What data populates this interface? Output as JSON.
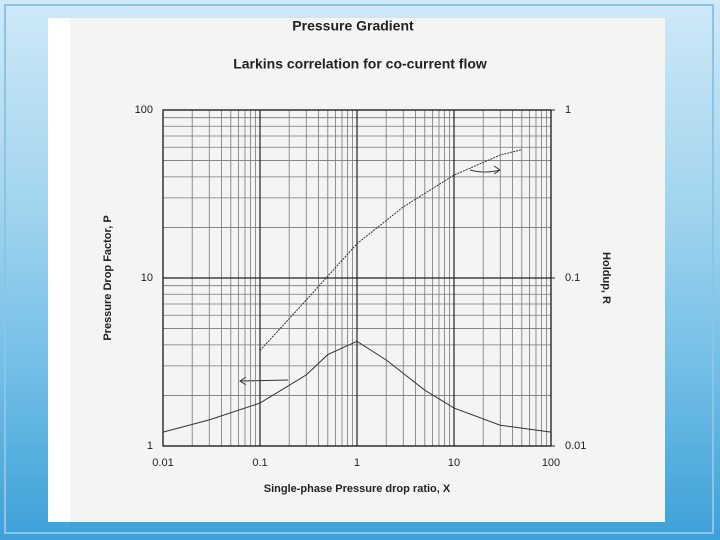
{
  "chart_data": {
    "type": "line",
    "title": "Pressure Gradient",
    "subtitle": "Larkins correlation for co-current flow",
    "x_label": "Single-phase Pressure drop ratio, X",
    "y_label": "Pressure Drop Factor, P",
    "y2_label": "Holdup, R",
    "log_x": true,
    "log_y": true,
    "log_y2": true,
    "grid": true,
    "xlim": [
      0.01,
      100
    ],
    "xticks": [
      0.01,
      0.1,
      1,
      10,
      100
    ],
    "ylim": [
      1,
      100
    ],
    "yticks": [
      1,
      10,
      100
    ],
    "y2lim": [
      0.01,
      1
    ],
    "y2ticks": [
      0.01,
      0.1,
      1
    ],
    "xminorticks": [
      0.02,
      0.03,
      0.04,
      0.05,
      0.06,
      0.07,
      0.08,
      0.09,
      0.2,
      0.3,
      0.4,
      0.5,
      0.6,
      0.7,
      0.8,
      0.9,
      2,
      3,
      4,
      5,
      6,
      7,
      8,
      9,
      20,
      30,
      40,
      50,
      60,
      70,
      80,
      90
    ],
    "yminorticks": [
      2,
      3,
      4,
      5,
      6,
      7,
      8,
      9,
      20,
      30,
      40,
      50,
      60,
      70,
      80,
      90
    ],
    "series": [
      {
        "axis": "y",
        "color": "#333333",
        "x": [
          0.01,
          0.03,
          0.1,
          0.3,
          0.5,
          1,
          2,
          5,
          10,
          30,
          100
        ],
        "values": [
          1.21,
          1.43,
          1.8,
          2.65,
          3.5,
          4.2,
          3.25,
          2.15,
          1.68,
          1.33,
          1.21
        ]
      },
      {
        "axis": "y2",
        "color": "#333333",
        "x": [
          0.1,
          0.3,
          1,
          3,
          10,
          30,
          50
        ],
        "values": [
          0.037,
          0.074,
          0.16,
          0.265,
          0.41,
          0.54,
          0.58
        ]
      }
    ]
  }
}
